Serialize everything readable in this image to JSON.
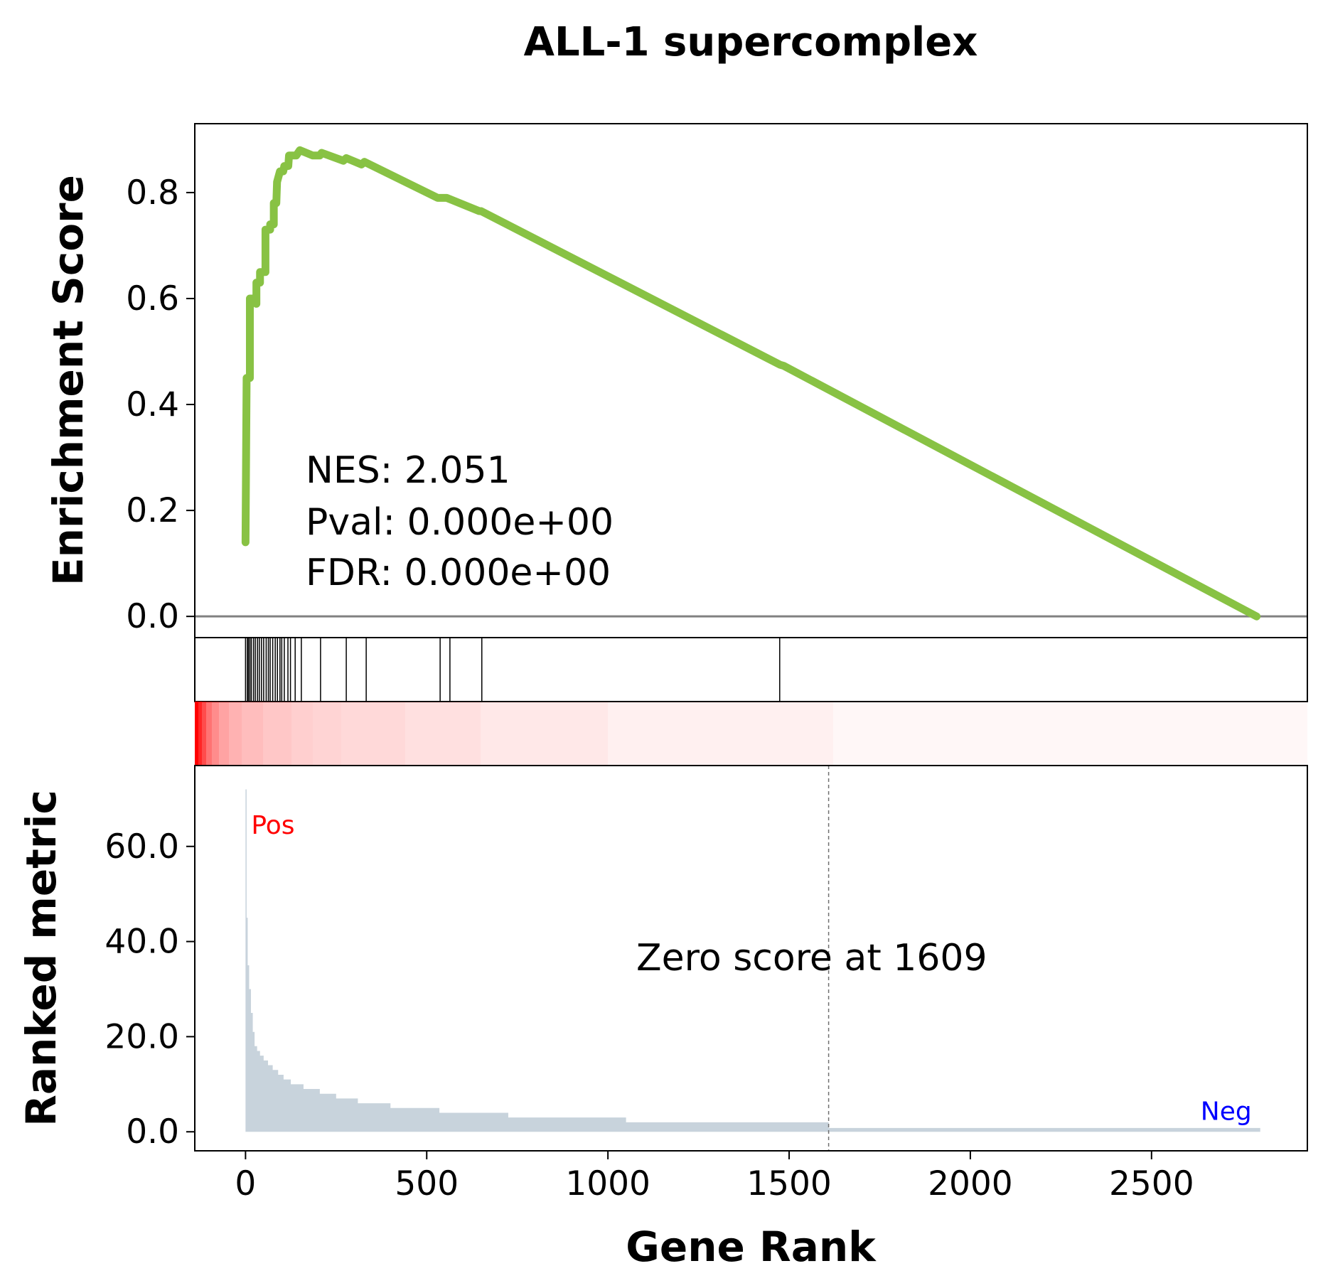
{
  "chart_data": {
    "type": "line",
    "title": "ALL-1 supercomplex",
    "xlabel": "Gene Rank",
    "x_ticks": [
      0,
      500,
      1000,
      1500,
      2000,
      2500
    ],
    "xlim": [
      -140,
      2930
    ],
    "enrichment": {
      "ylabel": "Enrichment Score",
      "ylim": [
        -0.04,
        0.93
      ],
      "y_ticks": [
        "0.0",
        "0.2",
        "0.4",
        "0.6",
        "0.8"
      ],
      "line_color": "#88c244",
      "points": [
        {
          "x": 0,
          "y": 0.14
        },
        {
          "x": 3,
          "y": 0.45
        },
        {
          "x": 12,
          "y": 0.45
        },
        {
          "x": 12,
          "y": 0.6
        },
        {
          "x": 22,
          "y": 0.6
        },
        {
          "x": 30,
          "y": 0.59
        },
        {
          "x": 30,
          "y": 0.63
        },
        {
          "x": 40,
          "y": 0.63
        },
        {
          "x": 40,
          "y": 0.65
        },
        {
          "x": 55,
          "y": 0.65
        },
        {
          "x": 55,
          "y": 0.73
        },
        {
          "x": 68,
          "y": 0.73
        },
        {
          "x": 68,
          "y": 0.74
        },
        {
          "x": 78,
          "y": 0.74
        },
        {
          "x": 78,
          "y": 0.78
        },
        {
          "x": 85,
          "y": 0.78
        },
        {
          "x": 87,
          "y": 0.82
        },
        {
          "x": 95,
          "y": 0.84
        },
        {
          "x": 104,
          "y": 0.84
        },
        {
          "x": 107,
          "y": 0.85
        },
        {
          "x": 118,
          "y": 0.85
        },
        {
          "x": 120,
          "y": 0.87
        },
        {
          "x": 140,
          "y": 0.87
        },
        {
          "x": 150,
          "y": 0.88
        },
        {
          "x": 185,
          "y": 0.87
        },
        {
          "x": 205,
          "y": 0.87
        },
        {
          "x": 210,
          "y": 0.875
        },
        {
          "x": 270,
          "y": 0.86
        },
        {
          "x": 278,
          "y": 0.865
        },
        {
          "x": 320,
          "y": 0.853
        },
        {
          "x": 328,
          "y": 0.858
        },
        {
          "x": 530,
          "y": 0.79
        },
        {
          "x": 555,
          "y": 0.79
        },
        {
          "x": 645,
          "y": 0.765
        },
        {
          "x": 650,
          "y": 0.765
        },
        {
          "x": 1475,
          "y": 0.475
        },
        {
          "x": 1485,
          "y": 0.473
        },
        {
          "x": 2790,
          "y": 0.0
        }
      ],
      "stats": [
        "NES: 2.051",
        "Pval: 0.000e+00",
        "FDR: 0.000e+00"
      ]
    },
    "hits": [
      0,
      5,
      8,
      12,
      16,
      22,
      27,
      33,
      38,
      44,
      50,
      57,
      63,
      68,
      75,
      82,
      88,
      95,
      100,
      107,
      117,
      124,
      137,
      154,
      207,
      278,
      333,
      537,
      564,
      652,
      1474
    ],
    "heatmap_color": "#ff0000",
    "ranked_metric": {
      "ylabel": "Ranked metric",
      "ylim": [
        -4,
        77
      ],
      "y_ticks": [
        "0.0",
        "20.0",
        "40.0",
        "60.0"
      ],
      "fill_color": "#c8d3dc",
      "values": [
        {
          "x": 0,
          "y": 72
        },
        {
          "x": 3,
          "y": 45
        },
        {
          "x": 6,
          "y": 35
        },
        {
          "x": 10,
          "y": 30
        },
        {
          "x": 15,
          "y": 25
        },
        {
          "x": 20,
          "y": 21
        },
        {
          "x": 25,
          "y": 18
        },
        {
          "x": 32,
          "y": 17
        },
        {
          "x": 40,
          "y": 16
        },
        {
          "x": 50,
          "y": 15
        },
        {
          "x": 62,
          "y": 14
        },
        {
          "x": 75,
          "y": 13
        },
        {
          "x": 90,
          "y": 12
        },
        {
          "x": 105,
          "y": 11
        },
        {
          "x": 125,
          "y": 10
        },
        {
          "x": 160,
          "y": 9
        },
        {
          "x": 205,
          "y": 8
        },
        {
          "x": 250,
          "y": 7
        },
        {
          "x": 310,
          "y": 6
        },
        {
          "x": 400,
          "y": 5
        },
        {
          "x": 535,
          "y": 4
        },
        {
          "x": 725,
          "y": 3
        },
        {
          "x": 1050,
          "y": 2
        },
        {
          "x": 1609,
          "y": 0.8
        },
        {
          "x": 2800,
          "y": 0.8
        }
      ],
      "zero_cross": 1609,
      "zero_label": "Zero score at 1609",
      "pos_label": "Pos",
      "neg_label": "Neg",
      "pos_color": "#ff0000",
      "neg_color": "#0000ff"
    }
  }
}
